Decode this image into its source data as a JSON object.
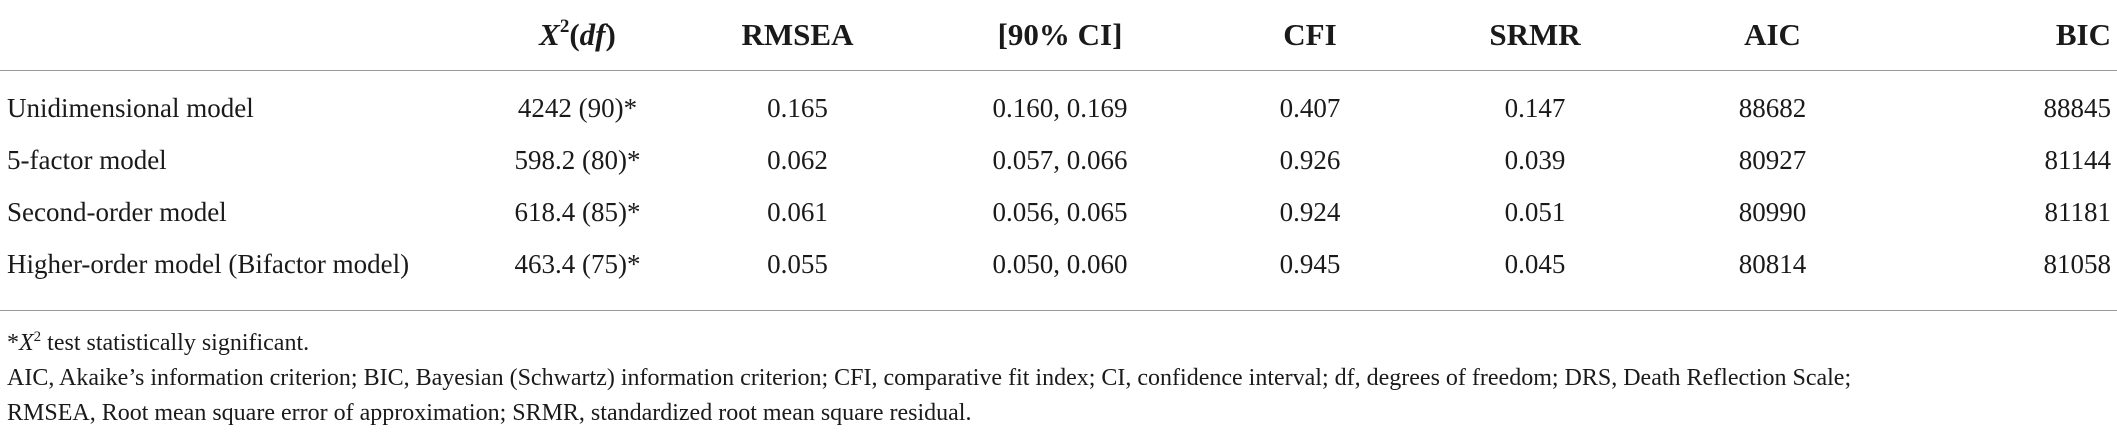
{
  "table": {
    "headers": {
      "label": "",
      "chi_symbol": "X",
      "chi_power": "2",
      "chi_df": "df",
      "rmsea": "RMSEA",
      "ci": "[90% CI]",
      "cfi": "CFI",
      "srmr": "SRMR",
      "aic": "AIC",
      "bic": "BIC"
    },
    "rows": [
      {
        "model": "Unidimensional model",
        "chi": "4242 (90)*",
        "rmsea": "0.165",
        "ci": "0.160, 0.169",
        "cfi": "0.407",
        "srmr": "0.147",
        "aic": "88682",
        "bic": "88845"
      },
      {
        "model": "5-factor model",
        "chi": "598.2 (80)*",
        "rmsea": "0.062",
        "ci": "0.057, 0.066",
        "cfi": "0.926",
        "srmr": "0.039",
        "aic": "80927",
        "bic": "81144"
      },
      {
        "model": "Second-order model",
        "chi": "618.4 (85)*",
        "rmsea": "0.061",
        "ci": "0.056, 0.065",
        "cfi": "0.924",
        "srmr": "0.051",
        "aic": "80990",
        "bic": "81181"
      },
      {
        "model": "Higher-order model (Bifactor model)",
        "chi": "463.4 (75)*",
        "rmsea": "0.055",
        "ci": "0.050, 0.060",
        "cfi": "0.945",
        "srmr": "0.045",
        "aic": "80814",
        "bic": "81058"
      }
    ]
  },
  "notes": {
    "sig_prefix": "*",
    "sig_symbol": "X",
    "sig_power": "2",
    "sig_text": " test statistically significant.",
    "abbrev_line1": "AIC, Akaike’s information criterion; BIC, Bayesian (Schwartz) information criterion; CFI, comparative fit index; CI, confidence interval; df, degrees of freedom; DRS, Death Reflection Scale;",
    "abbrev_line2": "RMSEA, Root mean square error of approximation; SRMR, standardized root mean square residual."
  }
}
